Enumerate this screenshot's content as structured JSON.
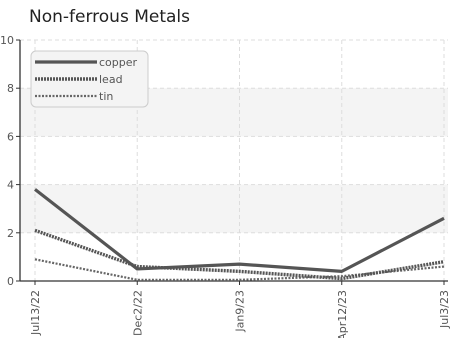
{
  "chart_data": {
    "type": "line",
    "title": "Non-ferrous Metals",
    "xlabel": "",
    "ylabel": "",
    "categories": [
      "Jul13/22",
      "Dec2/22",
      "Jan9/23",
      "Apr12/23",
      "Jul3/23"
    ],
    "ylim": [
      0,
      10
    ],
    "y_ticks": [
      "0",
      "2",
      "4",
      "6",
      "8",
      "10"
    ],
    "grid": true,
    "legend_position": "top-left",
    "series": [
      {
        "name": "copper",
        "values": [
          3.8,
          0.5,
          0.7,
          0.4,
          2.6
        ],
        "color": "#555555",
        "style": "solid"
      },
      {
        "name": "lead",
        "values": [
          2.1,
          0.6,
          0.4,
          0.1,
          0.8
        ],
        "color": "#555555",
        "style": "dashed"
      },
      {
        "name": "tin",
        "values": [
          0.9,
          0.05,
          0.05,
          0.2,
          0.6
        ],
        "color": "#666666",
        "style": "dotted"
      }
    ]
  }
}
